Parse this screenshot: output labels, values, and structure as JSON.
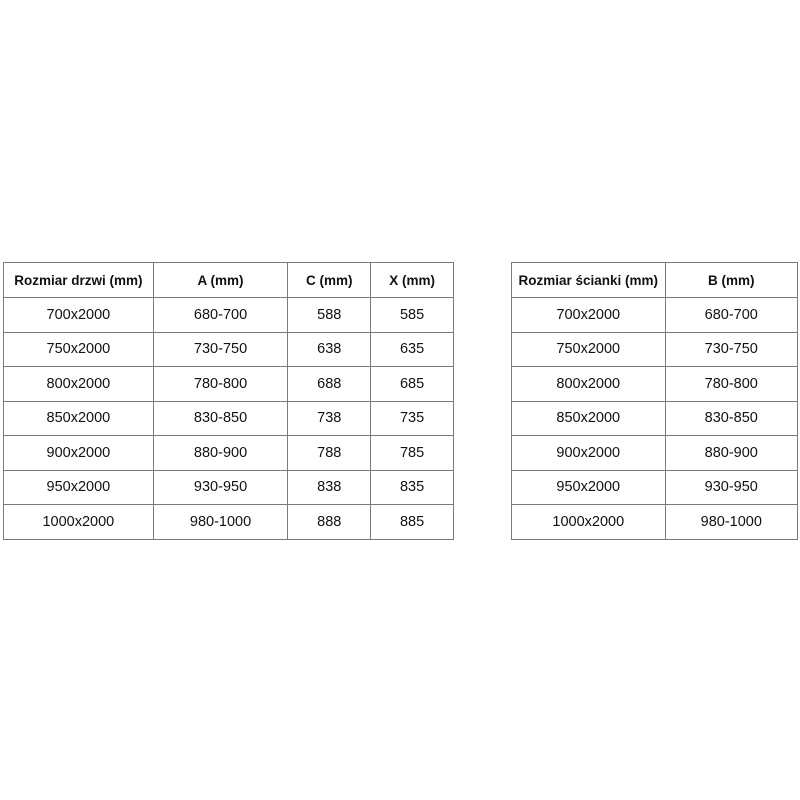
{
  "door_table": {
    "headers": [
      "Rozmiar drzwi (mm)",
      "A (mm)",
      "C (mm)",
      "X (mm)"
    ],
    "rows": [
      [
        "700x2000",
        "680-700",
        "588",
        "585"
      ],
      [
        "750x2000",
        "730-750",
        "638",
        "635"
      ],
      [
        "800x2000",
        "780-800",
        "688",
        "685"
      ],
      [
        "850x2000",
        "830-850",
        "738",
        "735"
      ],
      [
        "900x2000",
        "880-900",
        "788",
        "785"
      ],
      [
        "950x2000",
        "930-950",
        "838",
        "835"
      ],
      [
        "1000x2000",
        "980-1000",
        "888",
        "885"
      ]
    ]
  },
  "wall_table": {
    "headers": [
      "Rozmiar ścianki (mm)",
      "B (mm)"
    ],
    "rows": [
      [
        "700x2000",
        "680-700"
      ],
      [
        "750x2000",
        "730-750"
      ],
      [
        "800x2000",
        "780-800"
      ],
      [
        "850x2000",
        "830-850"
      ],
      [
        "900x2000",
        "880-900"
      ],
      [
        "950x2000",
        "930-950"
      ],
      [
        "1000x2000",
        "980-1000"
      ]
    ]
  }
}
